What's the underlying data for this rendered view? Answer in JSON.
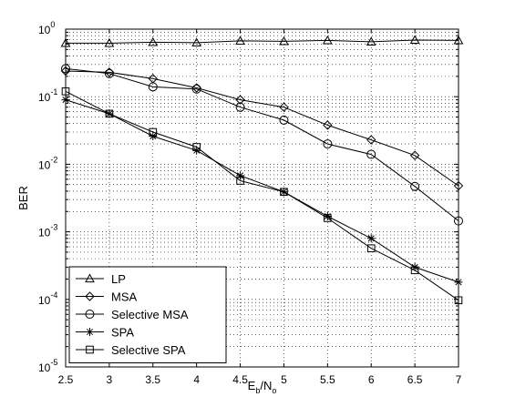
{
  "chart_data": {
    "type": "line",
    "title": "",
    "xlabel": {
      "base": "E",
      "sub1": "b",
      "mid": "/N",
      "sub2": "o"
    },
    "ylabel": "BER",
    "xscale": "linear",
    "yscale": "log",
    "xlim": [
      2.5,
      7
    ],
    "ylim": [
      1e-05,
      1
    ],
    "grid": true,
    "legend_position": "bottom-left",
    "x_ticks": [
      {
        "value": 2.5,
        "label": "2.5"
      },
      {
        "value": 3,
        "label": "3"
      },
      {
        "value": 3.5,
        "label": "3.5"
      },
      {
        "value": 4,
        "label": "4"
      },
      {
        "value": 4.5,
        "label": "4.5"
      },
      {
        "value": 5,
        "label": "5"
      },
      {
        "value": 5.5,
        "label": "5.5"
      },
      {
        "value": 6,
        "label": "6"
      },
      {
        "value": 6.5,
        "label": "6.5"
      },
      {
        "value": 7,
        "label": "7"
      }
    ],
    "y_ticks": [
      {
        "value": 1,
        "base": "10",
        "exp": "0"
      },
      {
        "value": 0.1,
        "base": "10",
        "exp": "-1"
      },
      {
        "value": 0.01,
        "base": "10",
        "exp": "-2"
      },
      {
        "value": 0.001,
        "base": "10",
        "exp": "-3"
      },
      {
        "value": 0.0001,
        "base": "10",
        "exp": "-4"
      },
      {
        "value": 1e-05,
        "base": "10",
        "exp": "-5"
      }
    ],
    "x": [
      2.5,
      3,
      3.5,
      4,
      4.5,
      5,
      5.5,
      6,
      6.5,
      7
    ],
    "series": [
      {
        "name": "LP",
        "marker": "triangle",
        "values": [
          0.62,
          0.62,
          0.64,
          0.63,
          0.67,
          0.66,
          0.68,
          0.65,
          0.69,
          0.68
        ]
      },
      {
        "name": "MSA",
        "marker": "diamond",
        "values": [
          0.24,
          0.23,
          0.185,
          0.135,
          0.09,
          0.07,
          0.038,
          0.023,
          0.0135,
          0.0048
        ]
      },
      {
        "name": "Selective MSA",
        "marker": "circle",
        "values": [
          0.26,
          0.22,
          0.14,
          0.13,
          0.07,
          0.045,
          0.02,
          0.014,
          0.0047,
          0.00145
        ]
      },
      {
        "name": "SPA",
        "marker": "star",
        "values": [
          0.09,
          0.056,
          0.026,
          0.016,
          0.0068,
          0.0039,
          0.0017,
          0.0008,
          0.0003,
          0.00018
        ]
      },
      {
        "name": "Selective SPA",
        "marker": "square",
        "values": [
          0.12,
          0.056,
          0.03,
          0.018,
          0.0057,
          0.0039,
          0.0016,
          0.00057,
          0.00027,
          9.7e-05
        ]
      }
    ]
  }
}
